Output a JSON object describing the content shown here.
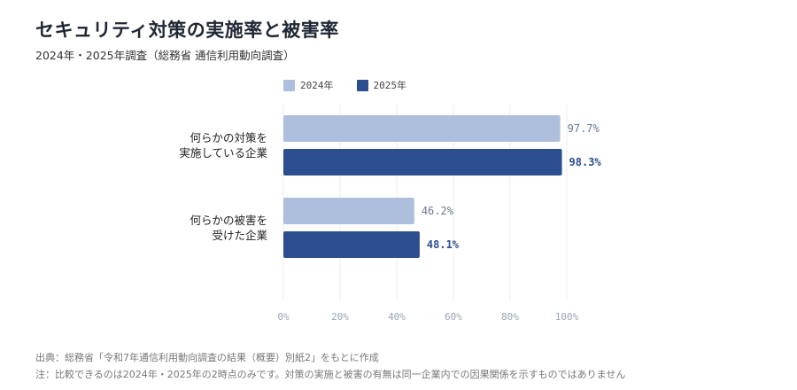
{
  "header": {
    "title": "セキュリティ対策の実施率と被害率",
    "subtitle": "2024年・2025年調査（総務省 通信利用動向調査）"
  },
  "footer": {
    "source": "出典：総務省「令和7年通信利用動向調査の結果（概要）別紙2」をもとに作成",
    "note": "注：比較できるのは2024年・2025年の2時点のみです。対策の実施と被害の有無は同一企業内での因果関係を示すものではありません"
  },
  "colors": {
    "2024": "#aebfdd",
    "2025": "#2c4e8e"
  },
  "chart_data": {
    "type": "bar",
    "orientation": "horizontal",
    "categories": [
      [
        "何らかの対策を",
        "実施している企業"
      ],
      [
        "何らかの被害を",
        "受けた企業"
      ]
    ],
    "series": [
      {
        "name": "2024年",
        "values": [
          97.7,
          46.2
        ],
        "labels": [
          "97.7%",
          "46.2%"
        ]
      },
      {
        "name": "2025年",
        "values": [
          98.3,
          48.1
        ],
        "labels": [
          "98.3%",
          "48.1%"
        ]
      }
    ],
    "xlim": [
      0,
      100
    ],
    "xticks": [
      0,
      20,
      40,
      60,
      80,
      100
    ],
    "xtick_labels": [
      "0%",
      "20%",
      "40%",
      "60%",
      "80%",
      "100%"
    ],
    "grid": true,
    "legend": "top"
  }
}
